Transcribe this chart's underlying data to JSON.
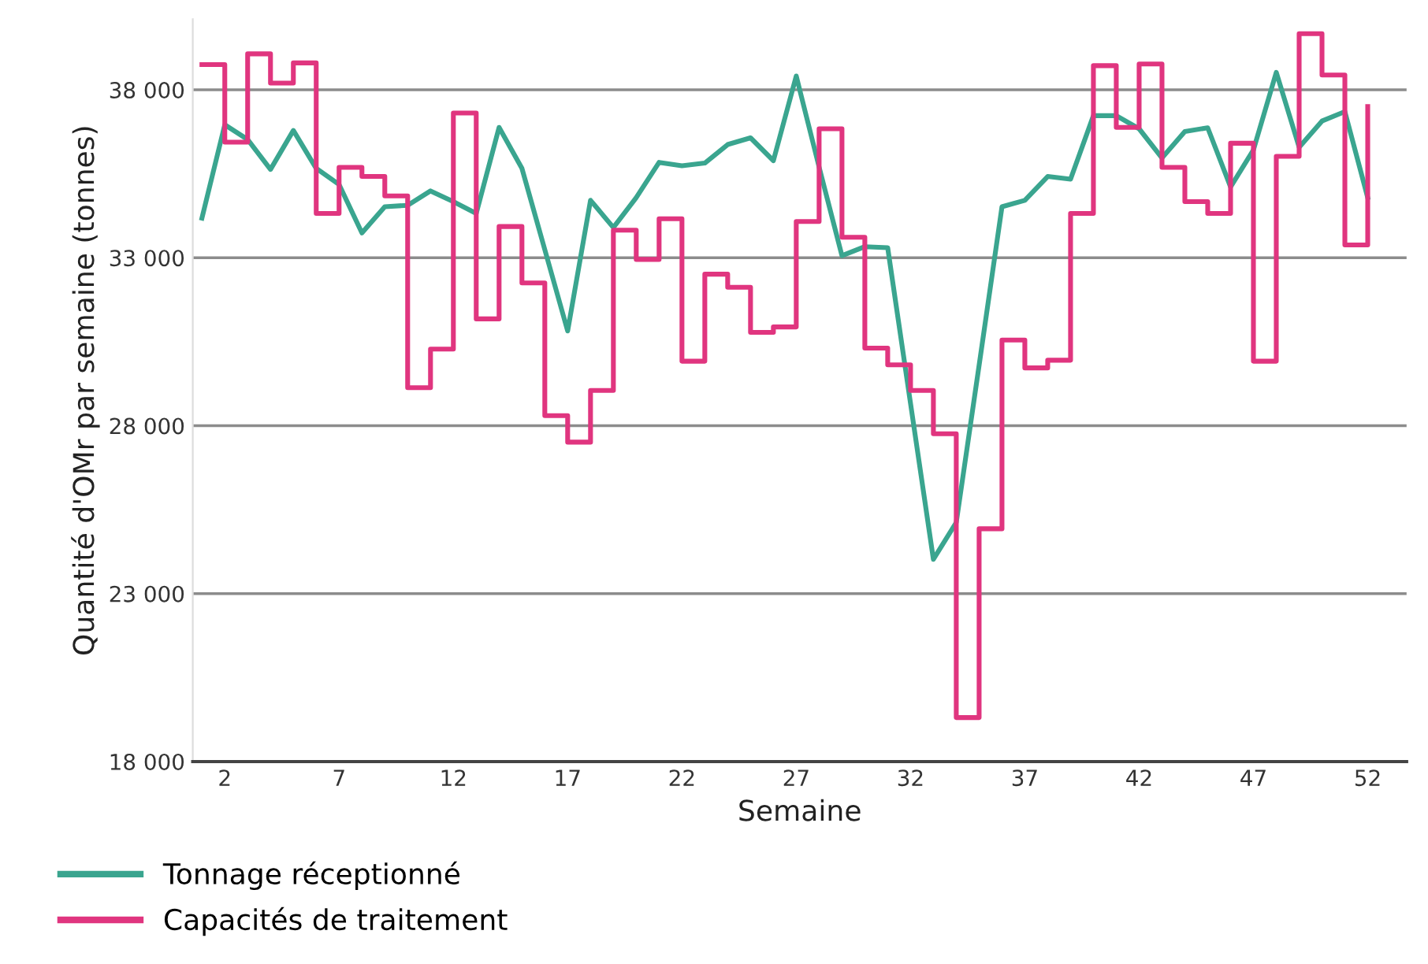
{
  "chart_data": {
    "type": "line",
    "xlabel": "Semaine",
    "ylabel": "Quantité d'OMr par semaine (tonnes)",
    "x": [
      1,
      2,
      3,
      4,
      5,
      6,
      7,
      8,
      9,
      10,
      11,
      12,
      13,
      14,
      15,
      16,
      17,
      18,
      19,
      20,
      21,
      22,
      23,
      24,
      25,
      26,
      27,
      28,
      29,
      30,
      31,
      32,
      33,
      34,
      35,
      36,
      37,
      38,
      39,
      40,
      41,
      42,
      43,
      44,
      45,
      46,
      47,
      48,
      49,
      50,
      51,
      52
    ],
    "xlim": [
      0.6,
      53.7
    ],
    "xticks": [
      2,
      7,
      12,
      17,
      22,
      27,
      32,
      37,
      42,
      47,
      52
    ],
    "ylim": [
      18000,
      40100
    ],
    "yticks": [
      {
        "value": 18000,
        "label": "18 000"
      },
      {
        "value": 23000,
        "label": "23 000"
      },
      {
        "value": 28000,
        "label": "28 000"
      },
      {
        "value": 33000,
        "label": "33 000"
      },
      {
        "value": 38000,
        "label": "38 000"
      }
    ],
    "grid": "y",
    "legend": "bottom left",
    "marker": "none",
    "line_style": "solid",
    "series": [
      {
        "name": "Tonnage réceptionné",
        "color": "#3aa58f",
        "values": [
          34180,
          36960,
          36520,
          35630,
          36790,
          35660,
          35180,
          33740,
          34520,
          34560,
          34990,
          34670,
          34320,
          36880,
          35660,
          33240,
          30820,
          34710,
          33900,
          34790,
          35840,
          35740,
          35820,
          36370,
          36570,
          35890,
          38410,
          35700,
          33060,
          33330,
          33300,
          28660,
          24020,
          25120,
          29800,
          34520,
          34710,
          35420,
          35340,
          37230,
          37230,
          36840,
          35970,
          36760,
          36870,
          35110,
          36210,
          38520,
          36290,
          37070,
          37350,
          34790
        ]
      },
      {
        "name": "Capacités de traitement",
        "color": "#e0357f",
        "type": "step",
        "values": [
          38750,
          36440,
          39070,
          38200,
          38800,
          34320,
          35690,
          35420,
          34840,
          29130,
          30280,
          37310,
          31180,
          33930,
          32250,
          28300,
          27510,
          29050,
          33820,
          32950,
          34160,
          29920,
          32510,
          32120,
          30780,
          30940,
          34080,
          36840,
          33610,
          30310,
          29810,
          29050,
          27760,
          19310,
          24930,
          30550,
          29720,
          29950,
          34320,
          38720,
          36880,
          38770,
          35690,
          34670,
          34320,
          36410,
          29920,
          36020,
          39670,
          38440,
          33380,
          37500
        ]
      }
    ]
  }
}
